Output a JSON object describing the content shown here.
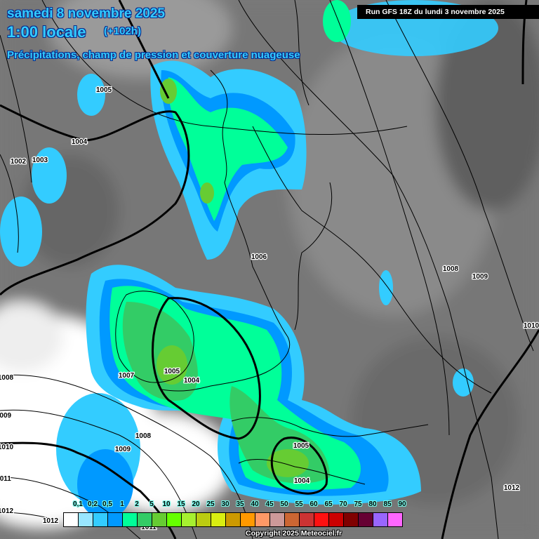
{
  "header": {
    "date": "samedi 8 novembre 2025",
    "time": "1:00 locale",
    "lead": "(+102h)",
    "subtitle": "Précipitations, champ de pression et couverture nuageuse",
    "run": "Run GFS 18Z du lundi 3 novembre 2025"
  },
  "isobar_labels": [
    "1005",
    "1004",
    "1002",
    "1003",
    "1006",
    "1008",
    "1009",
    "1010",
    "1005",
    "1004",
    "1007",
    "1008",
    "1009",
    "1008",
    "1009",
    "1010",
    "1011",
    "1012",
    "1005",
    "1004",
    "1012",
    "1012",
    "1011"
  ],
  "legend": {
    "unit_labels": [
      "0,1",
      "0,2",
      "0,5",
      "1",
      "2",
      "5",
      "10",
      "15",
      "20",
      "25",
      "30",
      "35",
      "40",
      "45",
      "50",
      "55",
      "60",
      "65",
      "70",
      "75",
      "80",
      "85",
      "90"
    ],
    "colors": [
      "#ffffff",
      "#99e6ff",
      "#33ccff",
      "#0099ff",
      "#00ff99",
      "#33cc66",
      "#66cc33",
      "#66ff00",
      "#a6f030",
      "#bbcc11",
      "#d9ee11",
      "#cc9900",
      "#ff9900",
      "#ff9966",
      "#cc9999",
      "#cc6633",
      "#cc3333",
      "#ff1111",
      "#cc0000",
      "#800000",
      "#660033",
      "#9966ff",
      "#ff66ff"
    ]
  },
  "colors": {
    "cloud_dark": "#555555",
    "cloud_clear": "#ffffff",
    "title": "#33ccff"
  },
  "copyright": "Copyright 2025 Meteociel.fr"
}
